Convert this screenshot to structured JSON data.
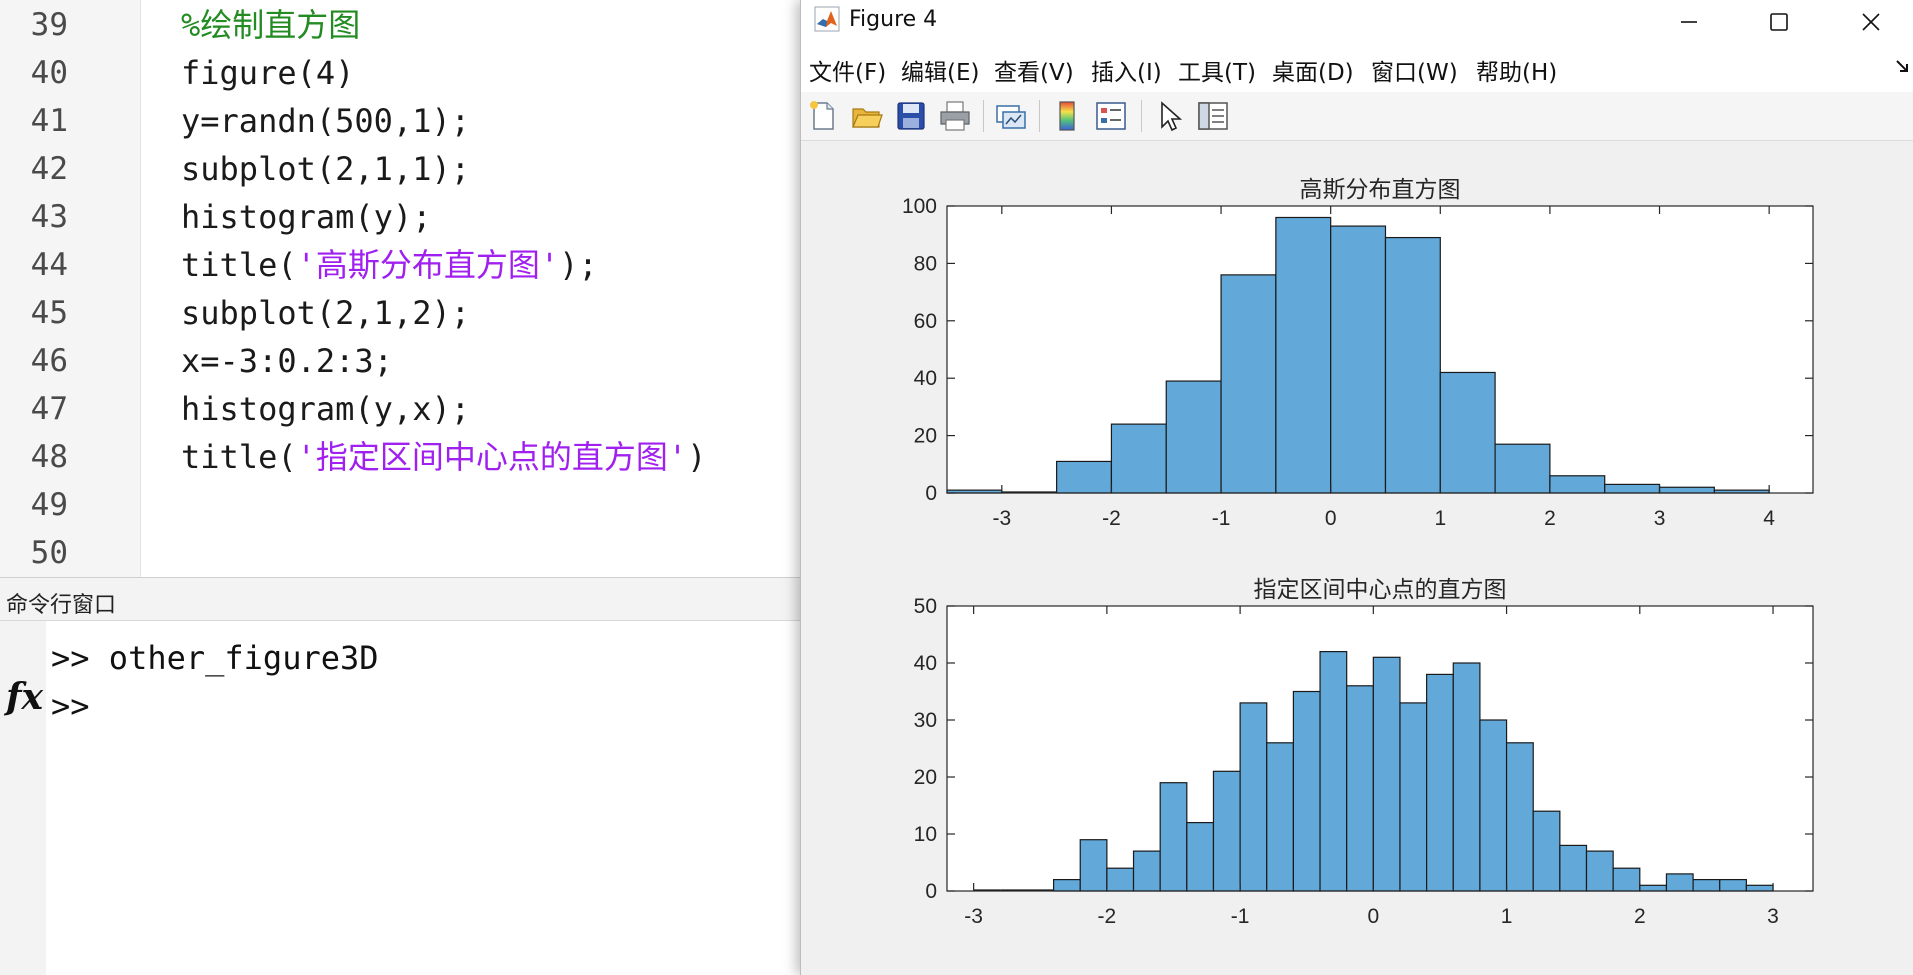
{
  "editor": {
    "line_numbers": [
      "39",
      "40",
      "41",
      "42",
      "43",
      "44",
      "45",
      "46",
      "47",
      "48",
      "49",
      "50"
    ],
    "lines": [
      [
        {
          "t": "%绘制直方图",
          "c": "cmt"
        }
      ],
      [
        {
          "t": "figure(4)",
          "c": ""
        }
      ],
      [
        {
          "t": "y=randn(500,1);",
          "c": ""
        }
      ],
      [
        {
          "t": "subplot(2,1,1);",
          "c": ""
        }
      ],
      [
        {
          "t": "histogram(y);",
          "c": ""
        }
      ],
      [
        {
          "t": "title(",
          "c": ""
        },
        {
          "t": "'高斯分布直方图'",
          "c": "str"
        },
        {
          "t": ");",
          "c": ""
        }
      ],
      [
        {
          "t": "subplot(2,1,2);",
          "c": ""
        }
      ],
      [
        {
          "t": "x=-3:0.2:3;",
          "c": ""
        }
      ],
      [
        {
          "t": "histogram(y,x);",
          "c": ""
        }
      ],
      [
        {
          "t": "title(",
          "c": ""
        },
        {
          "t": "'指定区间中心点的直方图'",
          "c": "str"
        },
        {
          "t": ")",
          "c": ""
        }
      ],
      [],
      []
    ]
  },
  "command_window": {
    "header": "命令行窗口",
    "fx_label": "fx",
    "lines": [
      ">> other_figure3D",
      ">>"
    ]
  },
  "figure_window": {
    "title": "Figure 4",
    "menus": [
      "文件(F)",
      "编辑(E)",
      "查看(V)",
      "插入(I)",
      "工具(T)",
      "桌面(D)",
      "窗口(W)",
      "帮助(H)"
    ],
    "toolbar_icons": [
      "new-figure-icon",
      "open-file-icon",
      "save-icon",
      "print-icon",
      "link-plot-icon",
      "colorbar-icon",
      "legend-icon",
      "pointer-icon",
      "property-editor-icon"
    ]
  },
  "chart_data": [
    {
      "type": "bar",
      "title": "高斯分布直方图",
      "bin_edges": [
        -3.5,
        -3,
        -2.5,
        -2,
        -1.5,
        -1,
        -0.5,
        0,
        0.5,
        1,
        1.5,
        2,
        2.5,
        3,
        3.5,
        4
      ],
      "values": [
        1,
        0,
        11,
        24,
        39,
        76,
        96,
        93,
        89,
        42,
        17,
        6,
        3,
        2,
        1
      ],
      "xlim": [
        -3.5,
        4.4
      ],
      "ylim": [
        0,
        100
      ],
      "xticks": [
        -3,
        -2,
        -1,
        0,
        1,
        2,
        3,
        4
      ],
      "yticks": [
        0,
        20,
        40,
        60,
        80,
        100
      ],
      "bar_color": "#4DBEEE",
      "fill_color": "#62A8D8"
    },
    {
      "type": "bar",
      "title": "指定区间中心点的直方图",
      "bin_edges": [
        -3,
        -2.8,
        -2.6,
        -2.4,
        -2.2,
        -2,
        -1.8,
        -1.6,
        -1.4,
        -1.2,
        -1,
        -0.8,
        -0.6,
        -0.4,
        -0.2,
        0,
        0.2,
        0.4,
        0.6,
        0.8,
        1,
        1.2,
        1.4,
        1.6,
        1.8,
        2,
        2.2,
        2.4,
        2.6,
        2.8,
        3
      ],
      "values": [
        0,
        0,
        0,
        2,
        9,
        4,
        7,
        19,
        12,
        21,
        33,
        26,
        35,
        42,
        36,
        41,
        33,
        38,
        40,
        30,
        26,
        14,
        8,
        7,
        4,
        1,
        3,
        2,
        2,
        1
      ],
      "xlim": [
        -3.2,
        3.3
      ],
      "ylim": [
        0,
        50
      ],
      "xticks": [
        -3,
        -2,
        -1,
        0,
        1,
        2,
        3
      ],
      "yticks": [
        0,
        10,
        20,
        30,
        40,
        50
      ],
      "fill_color": "#62A8D8"
    }
  ]
}
